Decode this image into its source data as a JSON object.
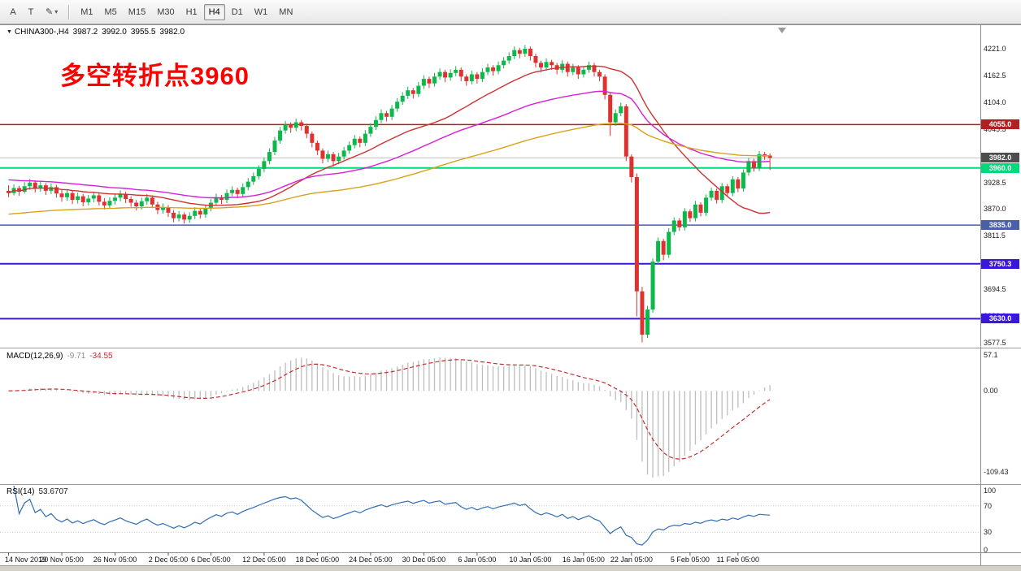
{
  "toolbar": {
    "tool_buttons": [
      {
        "label": "A",
        "name": "arrow-tool-button"
      },
      {
        "label": "T",
        "name": "text-tool-button"
      },
      {
        "label": "✎",
        "name": "drawing-tool-button",
        "dropdown": "▾"
      }
    ],
    "timeframes": [
      "M1",
      "M5",
      "M15",
      "M30",
      "H1",
      "H4",
      "D1",
      "W1",
      "MN"
    ],
    "active_timeframe": "H4"
  },
  "chart": {
    "header": {
      "symbol_period": "CHINA300-,H4",
      "open": "3987.2",
      "high": "3992.0",
      "low": "3955.5",
      "close": "3982.0"
    },
    "annotation": {
      "text": "多空转折点3960",
      "color": "#ff0000"
    }
  },
  "chart_data": {
    "type": "candlestick",
    "symbol": "CHINA300-",
    "timeframe": "H4",
    "colors": {
      "up": "#0db84b",
      "down": "#e03131"
    },
    "price_axis": {
      "ticks": [
        "4221.0",
        "4162.5",
        "4104.0",
        "4045.5",
        "3987.0",
        "3928.5",
        "3870.0",
        "3811.5",
        "3753.0",
        "3694.5",
        "3636.0",
        "3577.5"
      ]
    },
    "time_axis": {
      "labels": [
        {
          "text": "14 Nov 2019",
          "index": 0
        },
        {
          "text": "20 Nov 05:00",
          "index": 10
        },
        {
          "text": "26 Nov 05:00",
          "index": 20
        },
        {
          "text": "2 Dec 05:00",
          "index": 30
        },
        {
          "text": "6 Dec 05:00",
          "index": 38
        },
        {
          "text": "12 Dec 05:00",
          "index": 48
        },
        {
          "text": "18 Dec 05:00",
          "index": 58
        },
        {
          "text": "24 Dec 05:00",
          "index": 68
        },
        {
          "text": "30 Dec 05:00",
          "index": 78
        },
        {
          "text": "6 Jan 05:00",
          "index": 88
        },
        {
          "text": "10 Jan 05:00",
          "index": 98
        },
        {
          "text": "16 Jan 05:00",
          "index": 108
        },
        {
          "text": "22 Jan 05:00",
          "index": 117
        },
        {
          "text": "5 Feb 05:00",
          "index": 128
        },
        {
          "text": "11 Feb 05:00",
          "index": 137
        }
      ]
    },
    "hlines": [
      {
        "value": 4055.0,
        "label": "4055.0",
        "color": "#b02020",
        "width": 1.5,
        "role": "resistance"
      },
      {
        "value": 3982.0,
        "label": "3982.0",
        "color": "#c0c0c0",
        "tag_bg": "#4d4d4d",
        "width": 1,
        "role": "current-price"
      },
      {
        "value": 3960.0,
        "label": "3960.0",
        "color": "#00d97a",
        "width": 2,
        "role": "pivot"
      },
      {
        "value": 3835.0,
        "label": "3835.0",
        "color": "#4a5fa5",
        "width": 1.5,
        "role": "support"
      },
      {
        "value": 3750.3,
        "label": "3750.3",
        "color": "#3b18d9",
        "width": 2,
        "role": "support"
      },
      {
        "value": 3630.0,
        "label": "3630.0",
        "color": "#3b18d9",
        "width": 2,
        "role": "support"
      }
    ],
    "moving_averages": [
      {
        "name": "ma-fast",
        "method": "sma",
        "period": 26,
        "color": "#cc3333"
      },
      {
        "name": "ma-mid",
        "method": "ema",
        "period": 55,
        "seed": 3935,
        "color": "#d61fd6"
      },
      {
        "name": "ma-slow",
        "method": "ema",
        "period": 110,
        "seed": 3858,
        "color": "#d9a21b"
      }
    ],
    "indicators": [
      {
        "type": "macd",
        "label": "MACD(12,26,9)",
        "value_main": "-9.71",
        "value_signal": "-34.55",
        "axis_labels": [
          "57.1",
          "0.00",
          "-109.43"
        ],
        "hist_color": "#bdbdbd",
        "signal_color": "#c03030"
      },
      {
        "type": "rsi",
        "label": "RSI(14)",
        "value": "53.6707",
        "axis_labels": [
          "100",
          "70",
          "30",
          "0"
        ],
        "levels": [
          70,
          30
        ],
        "color": "#2f6db5"
      }
    ],
    "candles": [
      [
        3910,
        3922,
        3896,
        3905
      ],
      [
        3905,
        3924,
        3900,
        3916
      ],
      [
        3916,
        3921,
        3899,
        3908
      ],
      [
        3908,
        3929,
        3904,
        3920
      ],
      [
        3920,
        3936,
        3912,
        3928
      ],
      [
        3928,
        3933,
        3906,
        3915
      ],
      [
        3915,
        3930,
        3908,
        3922
      ],
      [
        3922,
        3927,
        3901,
        3910
      ],
      [
        3910,
        3926,
        3903,
        3918
      ],
      [
        3918,
        3923,
        3895,
        3904
      ],
      [
        3904,
        3912,
        3886,
        3896
      ],
      [
        3896,
        3913,
        3888,
        3905
      ],
      [
        3905,
        3910,
        3881,
        3890
      ],
      [
        3890,
        3906,
        3882,
        3898
      ],
      [
        3898,
        3903,
        3876,
        3885
      ],
      [
        3885,
        3901,
        3878,
        3893
      ],
      [
        3893,
        3908,
        3885,
        3900
      ],
      [
        3900,
        3905,
        3878,
        3886
      ],
      [
        3886,
        3894,
        3869,
        3878
      ],
      [
        3878,
        3896,
        3871,
        3888
      ],
      [
        3888,
        3903,
        3880,
        3895
      ],
      [
        3895,
        3911,
        3887,
        3903
      ],
      [
        3903,
        3908,
        3883,
        3892
      ],
      [
        3892,
        3898,
        3875,
        3884
      ],
      [
        3884,
        3890,
        3867,
        3876
      ],
      [
        3876,
        3895,
        3869,
        3887
      ],
      [
        3887,
        3903,
        3879,
        3895
      ],
      [
        3895,
        3900,
        3872,
        3880
      ],
      [
        3880,
        3886,
        3859,
        3868
      ],
      [
        3868,
        3882,
        3860,
        3874
      ],
      [
        3874,
        3879,
        3853,
        3862
      ],
      [
        3862,
        3868,
        3841,
        3850
      ],
      [
        3850,
        3866,
        3843,
        3858
      ],
      [
        3858,
        3863,
        3838,
        3847
      ],
      [
        3847,
        3863,
        3840,
        3855
      ],
      [
        3855,
        3874,
        3848,
        3866
      ],
      [
        3866,
        3871,
        3849,
        3858
      ],
      [
        3858,
        3880,
        3851,
        3872
      ],
      [
        3872,
        3892,
        3865,
        3884
      ],
      [
        3884,
        3904,
        3877,
        3896
      ],
      [
        3896,
        3901,
        3881,
        3890
      ],
      [
        3890,
        3913,
        3883,
        3905
      ],
      [
        3905,
        3920,
        3898,
        3912
      ],
      [
        3912,
        3917,
        3894,
        3903
      ],
      [
        3903,
        3926,
        3896,
        3918
      ],
      [
        3918,
        3938,
        3911,
        3930
      ],
      [
        3930,
        3950,
        3923,
        3942
      ],
      [
        3942,
        3966,
        3935,
        3958
      ],
      [
        3958,
        3983,
        3951,
        3975
      ],
      [
        3975,
        4003,
        3968,
        3995
      ],
      [
        3995,
        4028,
        3988,
        4020
      ],
      [
        4020,
        4050,
        4013,
        4042
      ],
      [
        4042,
        4063,
        4035,
        4055
      ],
      [
        4055,
        4060,
        4037,
        4048
      ],
      [
        4048,
        4068,
        4041,
        4060
      ],
      [
        4060,
        4065,
        4042,
        4052
      ],
      [
        4052,
        4057,
        4025,
        4035
      ],
      [
        4035,
        4040,
        4005,
        4015
      ],
      [
        4015,
        4020,
        3988,
        3998
      ],
      [
        3998,
        4003,
        3970,
        3980
      ],
      [
        3980,
        3998,
        3973,
        3990
      ],
      [
        3990,
        3995,
        3963,
        3975
      ],
      [
        3975,
        3993,
        3968,
        3985
      ],
      [
        3985,
        4006,
        3978,
        3998
      ],
      [
        3998,
        4018,
        3991,
        4010
      ],
      [
        4010,
        4032,
        4003,
        4024
      ],
      [
        4024,
        4029,
        4005,
        4015
      ],
      [
        4015,
        4043,
        4008,
        4035
      ],
      [
        4035,
        4058,
        4028,
        4050
      ],
      [
        4050,
        4073,
        4043,
        4065
      ],
      [
        4065,
        4088,
        4058,
        4080
      ],
      [
        4080,
        4085,
        4062,
        4072
      ],
      [
        4072,
        4098,
        4065,
        4090
      ],
      [
        4090,
        4113,
        4083,
        4105
      ],
      [
        4105,
        4126,
        4098,
        4118
      ],
      [
        4118,
        4138,
        4111,
        4130
      ],
      [
        4130,
        4135,
        4112,
        4122
      ],
      [
        4122,
        4148,
        4115,
        4140
      ],
      [
        4140,
        4163,
        4133,
        4155
      ],
      [
        4155,
        4160,
        4135,
        4145
      ],
      [
        4145,
        4168,
        4138,
        4160
      ],
      [
        4160,
        4178,
        4153,
        4170
      ],
      [
        4170,
        4175,
        4148,
        4158
      ],
      [
        4158,
        4176,
        4151,
        4168
      ],
      [
        4168,
        4183,
        4161,
        4175
      ],
      [
        4175,
        4180,
        4150,
        4160
      ],
      [
        4160,
        4165,
        4140,
        4150
      ],
      [
        4150,
        4173,
        4143,
        4165
      ],
      [
        4165,
        4170,
        4145,
        4155
      ],
      [
        4155,
        4178,
        4148,
        4170
      ],
      [
        4170,
        4188,
        4163,
        4180
      ],
      [
        4180,
        4185,
        4162,
        4172
      ],
      [
        4172,
        4193,
        4165,
        4185
      ],
      [
        4185,
        4203,
        4178,
        4195
      ],
      [
        4195,
        4213,
        4188,
        4205
      ],
      [
        4205,
        4226,
        4198,
        4218
      ],
      [
        4218,
        4223,
        4200,
        4210
      ],
      [
        4210,
        4229,
        4203,
        4221
      ],
      [
        4221,
        4226,
        4195,
        4205
      ],
      [
        4205,
        4210,
        4180,
        4190
      ],
      [
        4190,
        4195,
        4170,
        4180
      ],
      [
        4180,
        4200,
        4173,
        4192
      ],
      [
        4192,
        4197,
        4175,
        4185
      ],
      [
        4185,
        4190,
        4165,
        4175
      ],
      [
        4175,
        4196,
        4168,
        4188
      ],
      [
        4188,
        4193,
        4160,
        4170
      ],
      [
        4170,
        4188,
        4163,
        4180
      ],
      [
        4180,
        4185,
        4155,
        4165
      ],
      [
        4165,
        4183,
        4158,
        4175
      ],
      [
        4175,
        4193,
        4168,
        4185
      ],
      [
        4185,
        4190,
        4160,
        4170
      ],
      [
        4170,
        4175,
        4150,
        4160
      ],
      [
        4160,
        4165,
        4110,
        4120
      ],
      [
        4120,
        4125,
        4030,
        4060
      ],
      [
        4060,
        4088,
        4052,
        4080
      ],
      [
        4080,
        4103,
        4073,
        4095
      ],
      [
        4095,
        4100,
        3975,
        3985
      ],
      [
        3985,
        3990,
        3928,
        3940
      ],
      [
        3940,
        3948,
        3635,
        3690
      ],
      [
        3690,
        3700,
        3578,
        3595
      ],
      [
        3595,
        3658,
        3588,
        3650
      ],
      [
        3650,
        3762,
        3643,
        3755
      ],
      [
        3755,
        3808,
        3748,
        3800
      ],
      [
        3800,
        3805,
        3758,
        3770
      ],
      [
        3770,
        3828,
        3763,
        3820
      ],
      [
        3820,
        3852,
        3813,
        3845
      ],
      [
        3845,
        3850,
        3822,
        3830
      ],
      [
        3830,
        3872,
        3823,
        3865
      ],
      [
        3865,
        3870,
        3842,
        3850
      ],
      [
        3850,
        3888,
        3843,
        3880
      ],
      [
        3880,
        3885,
        3854,
        3862
      ],
      [
        3862,
        3902,
        3855,
        3895
      ],
      [
        3895,
        3917,
        3888,
        3910
      ],
      [
        3910,
        3915,
        3882,
        3890
      ],
      [
        3890,
        3927,
        3883,
        3920
      ],
      [
        3920,
        3925,
        3897,
        3905
      ],
      [
        3905,
        3942,
        3898,
        3935
      ],
      [
        3935,
        3940,
        3907,
        3915
      ],
      [
        3915,
        3957,
        3908,
        3950
      ],
      [
        3950,
        3982,
        3943,
        3975
      ],
      [
        3975,
        3980,
        3952,
        3960
      ],
      [
        3960,
        3997,
        3953,
        3990
      ],
      [
        3990,
        3995,
        3978,
        3985
      ],
      [
        3987.2,
        3992.0,
        3955.5,
        3982.0
      ]
    ]
  }
}
